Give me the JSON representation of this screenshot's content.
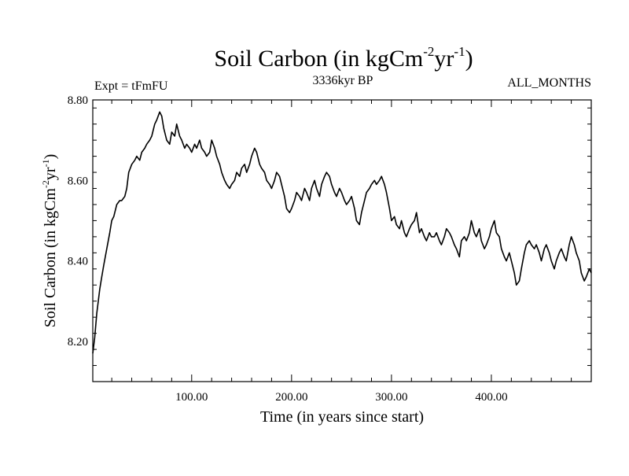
{
  "chart_data": {
    "type": "line",
    "title_main": "Soil Carbon (in kgCm",
    "title_sup1": "-2",
    "title_mid": "yr",
    "title_sup2": "-1",
    "title_end": ")",
    "subtitle": "3336kyr BP",
    "left_label": "Expt = tFmFU",
    "right_label": "ALL_MONTHS",
    "xlabel": "Time (in years since start)",
    "ylabel_main": "Soil Carbon (in kgCm",
    "ylabel_sup1": "-2",
    "ylabel_mid": "yr",
    "ylabel_sup2": "-1",
    "ylabel_end": ")",
    "xlim": [
      1,
      500
    ],
    "ylim": [
      8.1,
      8.8
    ],
    "x_ticks": [
      100,
      200,
      300,
      400
    ],
    "x_tick_labels": [
      "100.00",
      "200.00",
      "300.00",
      "400.00"
    ],
    "y_ticks": [
      8.2,
      8.4,
      8.6,
      8.8
    ],
    "y_tick_labels": [
      "8.20",
      "8.40",
      "8.60",
      "8.80"
    ],
    "grid": false,
    "series": [
      {
        "points": [
          [
            1,
            8.17
          ],
          [
            3,
            8.21
          ],
          [
            5,
            8.27
          ],
          [
            8,
            8.33
          ],
          [
            10,
            8.36
          ],
          [
            12,
            8.39
          ],
          [
            15,
            8.43
          ],
          [
            18,
            8.47
          ],
          [
            20,
            8.5
          ],
          [
            22,
            8.51
          ],
          [
            25,
            8.54
          ],
          [
            28,
            8.55
          ],
          [
            30,
            8.55
          ],
          [
            33,
            8.56
          ],
          [
            35,
            8.58
          ],
          [
            37,
            8.62
          ],
          [
            40,
            8.64
          ],
          [
            43,
            8.65
          ],
          [
            45,
            8.66
          ],
          [
            48,
            8.65
          ],
          [
            50,
            8.67
          ],
          [
            53,
            8.68
          ],
          [
            55,
            8.69
          ],
          [
            58,
            8.7
          ],
          [
            60,
            8.71
          ],
          [
            63,
            8.74
          ],
          [
            65,
            8.75
          ],
          [
            68,
            8.77
          ],
          [
            70,
            8.76
          ],
          [
            72,
            8.73
          ],
          [
            75,
            8.7
          ],
          [
            78,
            8.69
          ],
          [
            80,
            8.72
          ],
          [
            83,
            8.71
          ],
          [
            85,
            8.74
          ],
          [
            88,
            8.71
          ],
          [
            90,
            8.7
          ],
          [
            93,
            8.68
          ],
          [
            95,
            8.69
          ],
          [
            98,
            8.68
          ],
          [
            100,
            8.67
          ],
          [
            103,
            8.69
          ],
          [
            105,
            8.68
          ],
          [
            108,
            8.7
          ],
          [
            110,
            8.68
          ],
          [
            113,
            8.67
          ],
          [
            115,
            8.66
          ],
          [
            118,
            8.67
          ],
          [
            120,
            8.7
          ],
          [
            123,
            8.68
          ],
          [
            125,
            8.66
          ],
          [
            128,
            8.64
          ],
          [
            130,
            8.62
          ],
          [
            133,
            8.6
          ],
          [
            135,
            8.59
          ],
          [
            138,
            8.58
          ],
          [
            140,
            8.59
          ],
          [
            143,
            8.6
          ],
          [
            145,
            8.62
          ],
          [
            148,
            8.61
          ],
          [
            150,
            8.63
          ],
          [
            153,
            8.64
          ],
          [
            155,
            8.62
          ],
          [
            158,
            8.64
          ],
          [
            160,
            8.66
          ],
          [
            163,
            8.68
          ],
          [
            165,
            8.67
          ],
          [
            168,
            8.64
          ],
          [
            170,
            8.63
          ],
          [
            173,
            8.62
          ],
          [
            175,
            8.6
          ],
          [
            178,
            8.59
          ],
          [
            180,
            8.58
          ],
          [
            183,
            8.6
          ],
          [
            185,
            8.62
          ],
          [
            188,
            8.61
          ],
          [
            190,
            8.59
          ],
          [
            193,
            8.56
          ],
          [
            195,
            8.53
          ],
          [
            198,
            8.52
          ],
          [
            200,
            8.53
          ],
          [
            203,
            8.55
          ],
          [
            205,
            8.57
          ],
          [
            208,
            8.56
          ],
          [
            210,
            8.55
          ],
          [
            213,
            8.58
          ],
          [
            215,
            8.57
          ],
          [
            218,
            8.55
          ],
          [
            220,
            8.58
          ],
          [
            223,
            8.6
          ],
          [
            225,
            8.58
          ],
          [
            228,
            8.56
          ],
          [
            230,
            8.59
          ],
          [
            233,
            8.61
          ],
          [
            235,
            8.62
          ],
          [
            238,
            8.61
          ],
          [
            240,
            8.59
          ],
          [
            243,
            8.57
          ],
          [
            245,
            8.56
          ],
          [
            248,
            8.58
          ],
          [
            250,
            8.57
          ],
          [
            253,
            8.55
          ],
          [
            255,
            8.54
          ],
          [
            258,
            8.55
          ],
          [
            260,
            8.56
          ],
          [
            263,
            8.53
          ],
          [
            265,
            8.5
          ],
          [
            268,
            8.49
          ],
          [
            270,
            8.52
          ],
          [
            273,
            8.55
          ],
          [
            275,
            8.57
          ],
          [
            278,
            8.58
          ],
          [
            280,
            8.59
          ],
          [
            283,
            8.6
          ],
          [
            285,
            8.59
          ],
          [
            288,
            8.6
          ],
          [
            290,
            8.61
          ],
          [
            293,
            8.59
          ],
          [
            295,
            8.57
          ],
          [
            298,
            8.53
          ],
          [
            300,
            8.5
          ],
          [
            303,
            8.51
          ],
          [
            305,
            8.49
          ],
          [
            308,
            8.48
          ],
          [
            310,
            8.5
          ],
          [
            313,
            8.47
          ],
          [
            315,
            8.46
          ],
          [
            318,
            8.48
          ],
          [
            320,
            8.49
          ],
          [
            323,
            8.5
          ],
          [
            325,
            8.52
          ],
          [
            328,
            8.47
          ],
          [
            330,
            8.48
          ],
          [
            333,
            8.46
          ],
          [
            335,
            8.45
          ],
          [
            338,
            8.47
          ],
          [
            340,
            8.46
          ],
          [
            343,
            8.46
          ],
          [
            345,
            8.47
          ],
          [
            348,
            8.45
          ],
          [
            350,
            8.44
          ],
          [
            353,
            8.46
          ],
          [
            355,
            8.48
          ],
          [
            358,
            8.47
          ],
          [
            360,
            8.46
          ],
          [
            363,
            8.44
          ],
          [
            365,
            8.43
          ],
          [
            368,
            8.41
          ],
          [
            370,
            8.45
          ],
          [
            373,
            8.46
          ],
          [
            375,
            8.45
          ],
          [
            378,
            8.47
          ],
          [
            380,
            8.5
          ],
          [
            383,
            8.47
          ],
          [
            385,
            8.46
          ],
          [
            388,
            8.48
          ],
          [
            390,
            8.45
          ],
          [
            393,
            8.43
          ],
          [
            395,
            8.44
          ],
          [
            398,
            8.46
          ],
          [
            400,
            8.48
          ],
          [
            403,
            8.5
          ],
          [
            405,
            8.47
          ],
          [
            408,
            8.46
          ],
          [
            410,
            8.43
          ],
          [
            413,
            8.41
          ],
          [
            415,
            8.4
          ],
          [
            418,
            8.42
          ],
          [
            420,
            8.4
          ],
          [
            423,
            8.37
          ],
          [
            425,
            8.34
          ],
          [
            428,
            8.35
          ],
          [
            430,
            8.38
          ],
          [
            433,
            8.42
          ],
          [
            435,
            8.44
          ],
          [
            438,
            8.45
          ],
          [
            440,
            8.44
          ],
          [
            443,
            8.43
          ],
          [
            445,
            8.44
          ],
          [
            448,
            8.42
          ],
          [
            450,
            8.4
          ],
          [
            453,
            8.43
          ],
          [
            455,
            8.44
          ],
          [
            458,
            8.42
          ],
          [
            460,
            8.4
          ],
          [
            463,
            8.38
          ],
          [
            465,
            8.4
          ],
          [
            468,
            8.42
          ],
          [
            470,
            8.43
          ],
          [
            473,
            8.41
          ],
          [
            475,
            8.4
          ],
          [
            478,
            8.44
          ],
          [
            480,
            8.46
          ],
          [
            483,
            8.44
          ],
          [
            485,
            8.42
          ],
          [
            488,
            8.4
          ],
          [
            490,
            8.37
          ],
          [
            493,
            8.35
          ],
          [
            495,
            8.36
          ],
          [
            498,
            8.38
          ],
          [
            500,
            8.37
          ]
        ]
      }
    ]
  }
}
